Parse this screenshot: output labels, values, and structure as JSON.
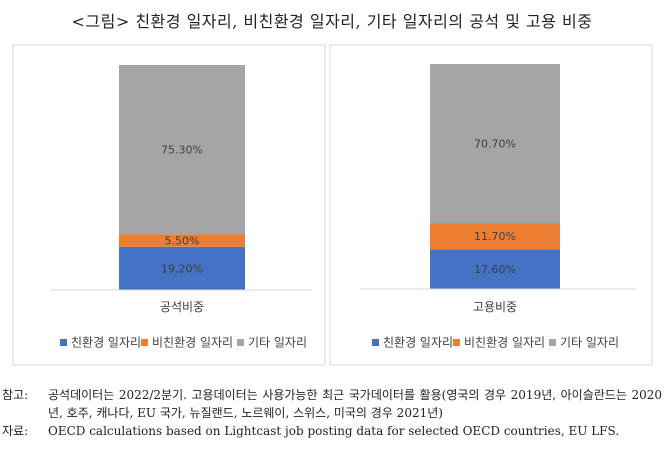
{
  "title": "<그림> 친환경 일자리, 비친환경 일자리, 기타 일자리의 공석 및 고용 비중",
  "chart_data": [
    {
      "type": "bar",
      "stacked": true,
      "categories": [
        "공석비중"
      ],
      "series": [
        {
          "name": "친환경 일자리",
          "values": [
            19.2
          ],
          "labels": [
            "19.20%"
          ],
          "color": "#4472C4"
        },
        {
          "name": "비친환경 일자리",
          "values": [
            5.5
          ],
          "labels": [
            "5.50%"
          ],
          "color": "#ED7D31"
        },
        {
          "name": "기타 일자리",
          "values": [
            75.3
          ],
          "labels": [
            "75.30%"
          ],
          "color": "#A5A5A5"
        }
      ],
      "ylim": [
        0,
        100
      ],
      "grid": false,
      "legend": "bottom"
    },
    {
      "type": "bar",
      "stacked": true,
      "categories": [
        "고용비중"
      ],
      "series": [
        {
          "name": "친환경 일자리",
          "values": [
            17.6
          ],
          "labels": [
            "17.60%"
          ],
          "color": "#4472C4"
        },
        {
          "name": "비친환경 일자리",
          "values": [
            11.7
          ],
          "labels": [
            "11.70%"
          ],
          "color": "#ED7D31"
        },
        {
          "name": "기타 일자리",
          "values": [
            70.7
          ],
          "labels": [
            "70.70%"
          ],
          "color": "#A5A5A5"
        }
      ],
      "ylim": [
        0,
        100
      ],
      "grid": false,
      "legend": "bottom"
    }
  ],
  "notes": [
    {
      "label": "참고:",
      "text": "공석데이터는 2022/2분기. 고용데이터는 사용가능한 최근 국가데이터를 활용(영국의 경우 2019년, 아이슬란드는 2020년, 호주, 캐나다, EU 국가, 뉴질랜드, 노르웨이, 스위스, 미국의 경우 2021년)"
    },
    {
      "label": "자료:",
      "text": "OECD calculations based on Lightcast job posting data for selected OECD countries, EU LFS."
    }
  ]
}
